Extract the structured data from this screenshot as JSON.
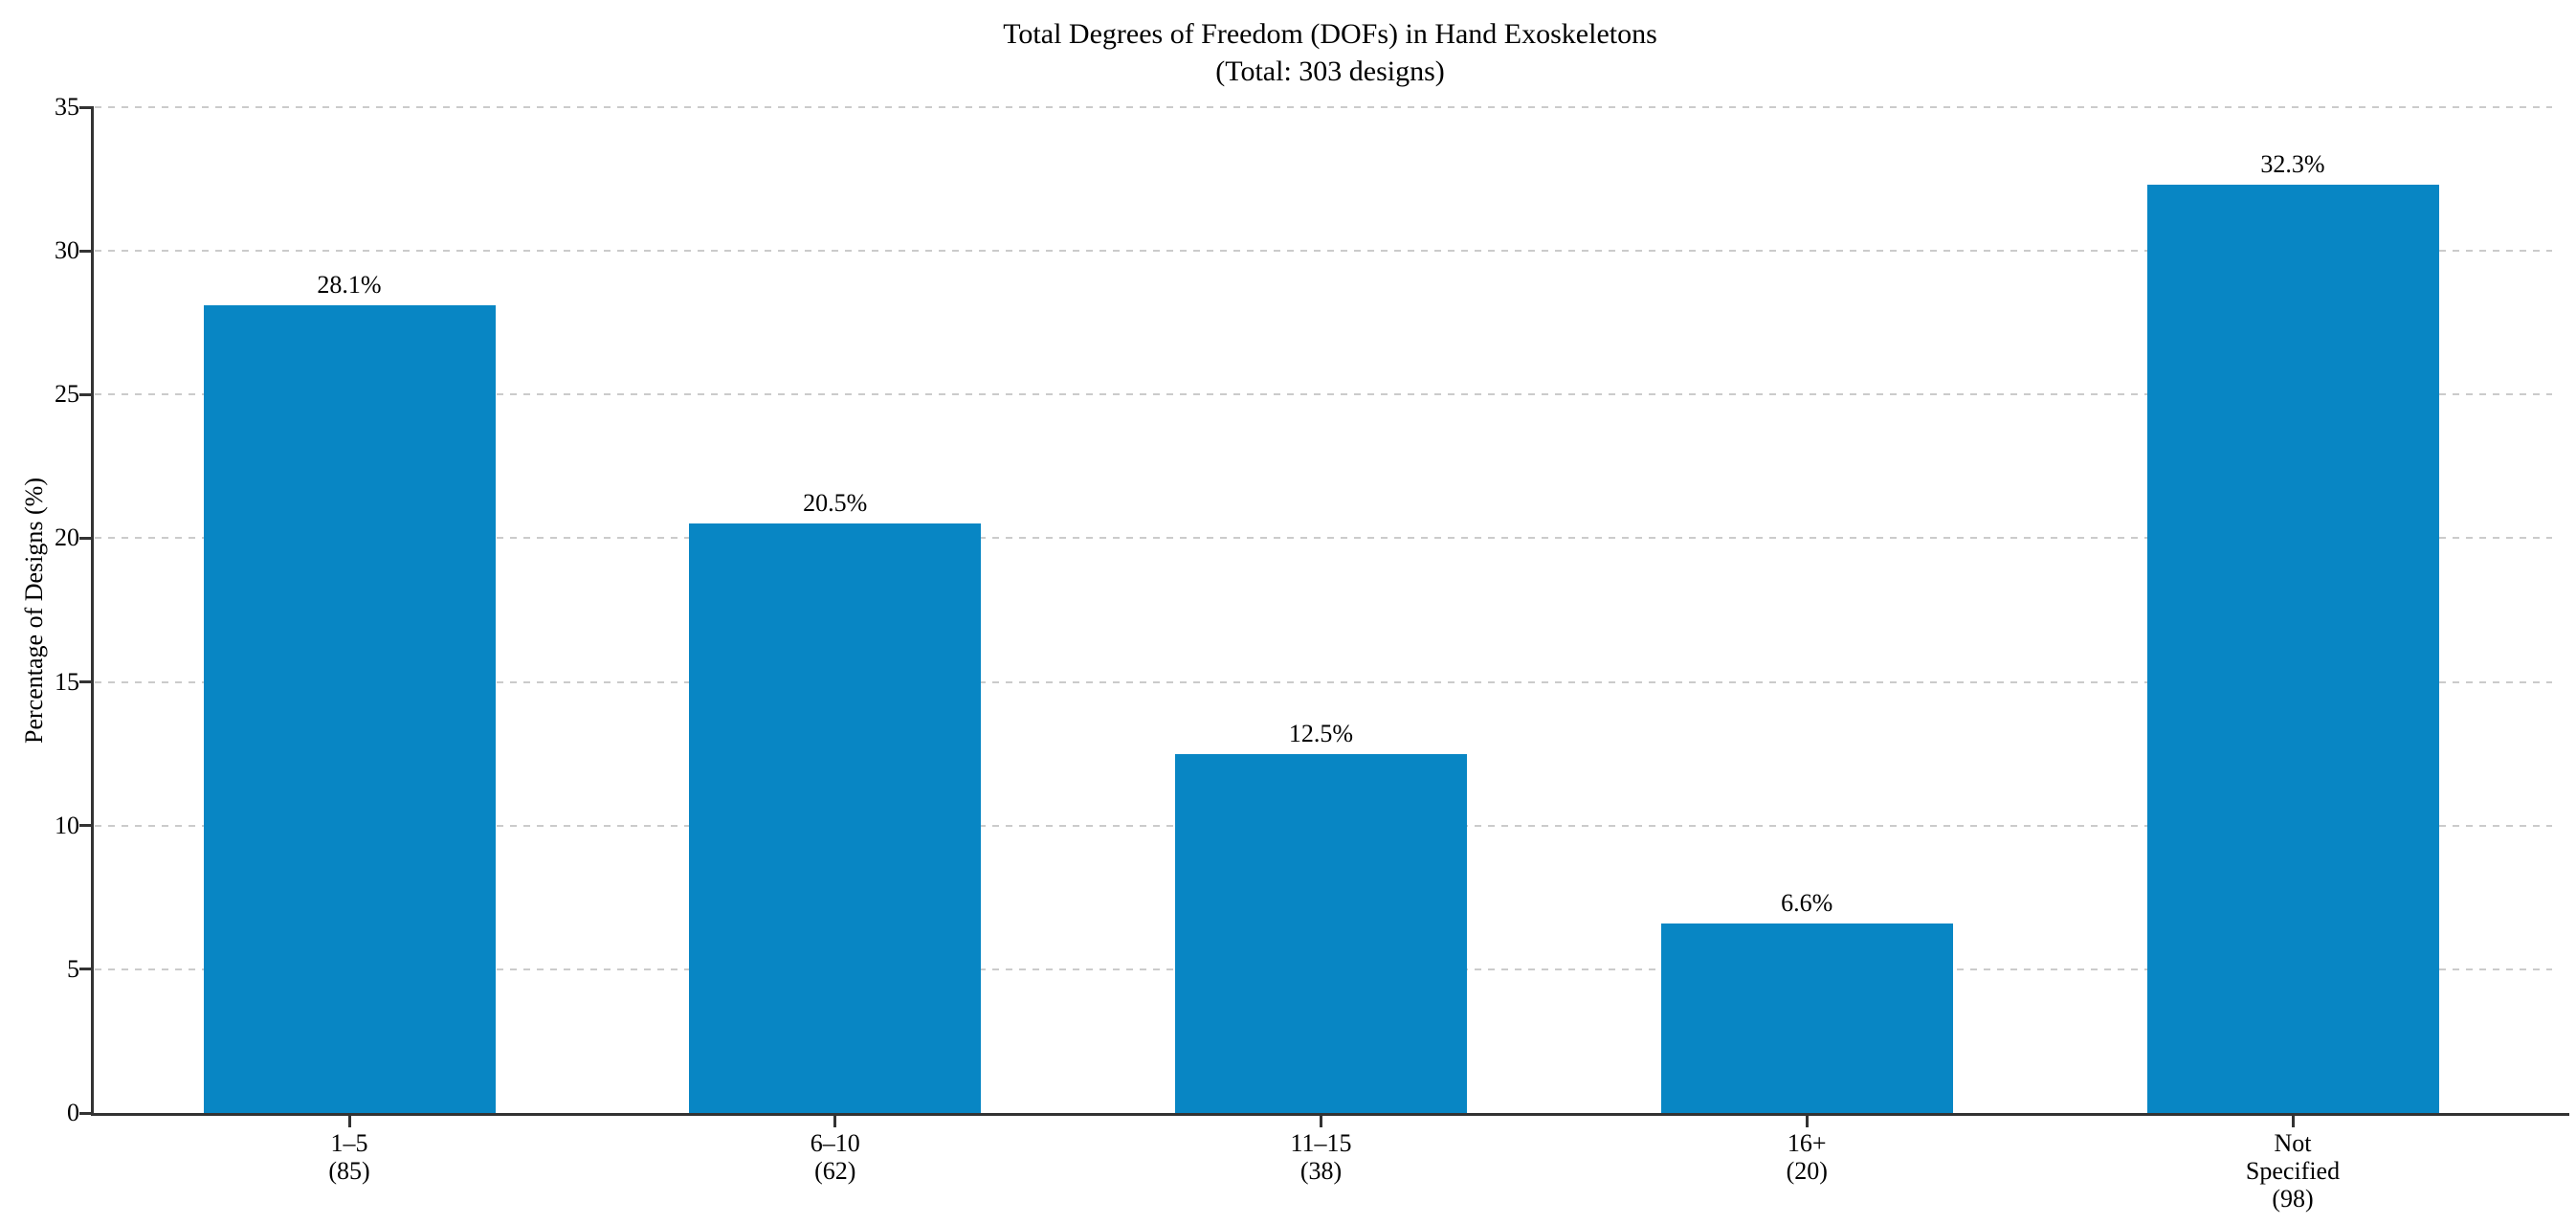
{
  "header": {
    "title_line1": "Total Degrees of Freedom (DOFs) in Hand Exoskeletons",
    "title_line2": "(Total: 303 designs)"
  },
  "chart_data": {
    "type": "bar",
    "title": "Total Degrees of Freedom (DOFs) in Hand Exoskeletons",
    "subtitle": "(Total: 303 designs)",
    "total_designs": 303,
    "xlabel": "",
    "ylabel": "Percentage of Designs (%)",
    "categories": [
      "1–5",
      "6–10",
      "11–15",
      "16+",
      "Not Specified"
    ],
    "counts": [
      85,
      62,
      38,
      20,
      98
    ],
    "values": [
      28.1,
      20.5,
      12.5,
      6.6,
      32.3
    ],
    "bar_value_labels": [
      "28.1%",
      "20.5%",
      "12.5%",
      "6.6%",
      "32.3%"
    ],
    "category_tick_lines": [
      [
        "1–5",
        "(85)"
      ],
      [
        "6–10",
        "(62)"
      ],
      [
        "11–15",
        "(38)"
      ],
      [
        "16+",
        "(20)"
      ],
      [
        "Not",
        "Specified",
        "(98)"
      ]
    ],
    "ylim": [
      0,
      35
    ],
    "yticks": [
      0,
      5,
      10,
      15,
      20,
      25,
      30,
      35
    ],
    "grid": "horizontal dashed",
    "legend": false,
    "colors": {
      "bar": "#0886c4",
      "grid": "#cbcbcb",
      "spine": "#333333",
      "text": "#000000",
      "background": "#ffffff"
    }
  }
}
